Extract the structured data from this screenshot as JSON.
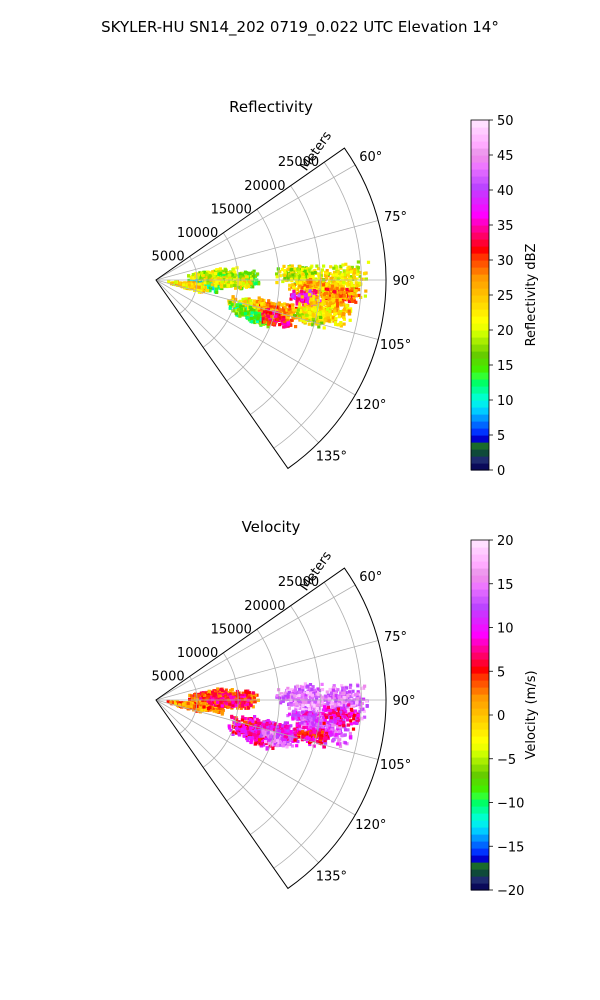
{
  "figure": {
    "title": "SKYLER-HU  SN14_202  0719_0.022 UTC Elevation 14°"
  },
  "chart_data": [
    {
      "type": "heatmap",
      "subtype": "radar-ppi-sector",
      "title": "Reflectivity",
      "radial_label": "Meters",
      "radial_ticks": [
        "5000",
        "10000",
        "15000",
        "20000",
        "25000"
      ],
      "radial_tick_values": [
        5000,
        10000,
        15000,
        20000,
        25000
      ],
      "azimuth_ticks": [
        "60°",
        "75°",
        "90°",
        "105°",
        "120°",
        "135°"
      ],
      "azimuth_tick_values": [
        60,
        75,
        90,
        105,
        120,
        135
      ],
      "azimuth_range": [
        55,
        145
      ],
      "range_max": 28000,
      "grid": true,
      "colorbar": {
        "label": "Reflectivity dBZ",
        "ticks": [
          "0",
          "5",
          "10",
          "15",
          "20",
          "25",
          "30",
          "35",
          "40",
          "45",
          "50"
        ],
        "range": [
          0,
          50
        ],
        "colors": [
          "#0a0a5a",
          "#1e2a6e",
          "#0f4a3a",
          "#1a6a2a",
          "#0000cc",
          "#0033ff",
          "#0066ff",
          "#0099ff",
          "#00ccff",
          "#00eeee",
          "#00ffcc",
          "#00ff99",
          "#00ff66",
          "#33ff33",
          "#44ee00",
          "#55dd00",
          "#66cc00",
          "#88dd00",
          "#aaee00",
          "#ccff00",
          "#eeff00",
          "#ffff00",
          "#ffee00",
          "#ffdd00",
          "#ffcc00",
          "#ffbb00",
          "#ffaa00",
          "#ff9900",
          "#ff7700",
          "#ff5500",
          "#ff3300",
          "#ff0000",
          "#ff0033",
          "#ff0066",
          "#ff0099",
          "#ff00cc",
          "#ff00ff",
          "#ee11ff",
          "#dd22ff",
          "#cc33ff",
          "#bb44ff",
          "#cc55ff",
          "#dd66ff",
          "#ee77ff",
          "#ee88ee",
          "#ee99ee",
          "#ffaaff",
          "#ffbbff",
          "#ffccff",
          "#ffe0ff"
        ]
      },
      "echoes": [
        {
          "az": 96,
          "r": 6000,
          "rw": 2800,
          "aw": 7,
          "v": 12
        },
        {
          "az": 100,
          "r": 4000,
          "rw": 2800,
          "aw": 7,
          "v": 24
        },
        {
          "az": 85,
          "r": 7000,
          "rw": 3500,
          "aw": 6,
          "v": 20
        },
        {
          "az": 90,
          "r": 10000,
          "rw": 3000,
          "aw": 7,
          "v": 16
        },
        {
          "az": 92,
          "r": 9000,
          "rw": 3500,
          "aw": 5,
          "v": 21
        },
        {
          "az": 106,
          "r": 13000,
          "rw": 4500,
          "aw": 6,
          "v": 23
        },
        {
          "az": 110,
          "r": 12500,
          "rw": 3500,
          "aw": 5,
          "v": 15
        },
        {
          "az": 104,
          "r": 15500,
          "rw": 4000,
          "aw": 5,
          "v": 27
        },
        {
          "az": 108,
          "r": 15500,
          "rw": 2500,
          "aw": 4,
          "v": 32
        },
        {
          "az": 88,
          "r": 17500,
          "rw": 3500,
          "aw": 5,
          "v": 20
        },
        {
          "az": 93,
          "r": 19500,
          "rw": 4000,
          "aw": 6,
          "v": 25
        },
        {
          "az": 97,
          "r": 18500,
          "rw": 2500,
          "aw": 4,
          "v": 37
        },
        {
          "az": 100,
          "r": 21000,
          "rw": 4000,
          "aw": 6,
          "v": 24
        },
        {
          "az": 90,
          "r": 23000,
          "rw": 3500,
          "aw": 6,
          "v": 22
        },
        {
          "az": 95,
          "r": 22500,
          "rw": 3000,
          "aw": 4,
          "v": 28
        },
        {
          "az": 103,
          "r": 19500,
          "rw": 2500,
          "aw": 4,
          "v": 21
        }
      ]
    },
    {
      "type": "heatmap",
      "subtype": "radar-ppi-sector",
      "title": "Velocity",
      "radial_label": "Meters",
      "radial_ticks": [
        "5000",
        "10000",
        "15000",
        "20000",
        "25000"
      ],
      "radial_tick_values": [
        5000,
        10000,
        15000,
        20000,
        25000
      ],
      "azimuth_ticks": [
        "60°",
        "75°",
        "90°",
        "105°",
        "120°",
        "135°"
      ],
      "azimuth_tick_values": [
        60,
        75,
        90,
        105,
        120,
        135
      ],
      "azimuth_range": [
        55,
        145
      ],
      "range_max": 28000,
      "grid": true,
      "colorbar": {
        "label": "Velocity (m/s)",
        "ticks": [
          "−20",
          "−15",
          "−10",
          "−5",
          "0",
          "5",
          "10",
          "15",
          "20"
        ],
        "range": [
          -20,
          20
        ],
        "colors": [
          "#0a0a5a",
          "#1e2a6e",
          "#0f4a3a",
          "#1a6a2a",
          "#0000cc",
          "#0033ff",
          "#0066ff",
          "#0099ff",
          "#00ccff",
          "#00eeee",
          "#00ffcc",
          "#00ff99",
          "#00ff66",
          "#33ff33",
          "#44ee00",
          "#55dd00",
          "#66cc00",
          "#88dd00",
          "#aaee00",
          "#ccff00",
          "#eeff00",
          "#ffff00",
          "#ffee00",
          "#ffdd00",
          "#ffcc00",
          "#ffbb00",
          "#ffaa00",
          "#ff9900",
          "#ff7700",
          "#ff5500",
          "#ff3300",
          "#ff0000",
          "#ff0033",
          "#ff0066",
          "#ff0099",
          "#ff00cc",
          "#ff00ff",
          "#ee11ff",
          "#dd22ff",
          "#cc33ff",
          "#bb44ff",
          "#cc55ff",
          "#dd66ff",
          "#ee77ff",
          "#ee88ee",
          "#ee99ee",
          "#ffaaff",
          "#ffbbff",
          "#ffccff",
          "#ffe0ff"
        ]
      },
      "echoes": [
        {
          "az": 96,
          "r": 6000,
          "rw": 2800,
          "aw": 7,
          "v": 2
        },
        {
          "az": 100,
          "r": 4000,
          "rw": 2800,
          "aw": 7,
          "v": 2
        },
        {
          "az": 85,
          "r": 7000,
          "rw": 3500,
          "aw": 6,
          "v": 4
        },
        {
          "az": 90,
          "r": 10000,
          "rw": 3000,
          "aw": 7,
          "v": 4
        },
        {
          "az": 92,
          "r": 9000,
          "rw": 3500,
          "aw": 5,
          "v": 6
        },
        {
          "az": 106,
          "r": 13000,
          "rw": 4500,
          "aw": 6,
          "v": 7
        },
        {
          "az": 110,
          "r": 12500,
          "rw": 3500,
          "aw": 5,
          "v": 8
        },
        {
          "az": 104,
          "r": 15500,
          "rw": 4000,
          "aw": 5,
          "v": 10
        },
        {
          "az": 108,
          "r": 15500,
          "rw": 2500,
          "aw": 4,
          "v": 14
        },
        {
          "az": 88,
          "r": 17500,
          "rw": 3500,
          "aw": 5,
          "v": 15
        },
        {
          "az": 93,
          "r": 19500,
          "rw": 4000,
          "aw": 6,
          "v": 16
        },
        {
          "az": 97,
          "r": 18500,
          "rw": 2500,
          "aw": 4,
          "v": 11
        },
        {
          "az": 100,
          "r": 21000,
          "rw": 4000,
          "aw": 6,
          "v": 13
        },
        {
          "az": 90,
          "r": 23000,
          "rw": 3500,
          "aw": 6,
          "v": 15
        },
        {
          "az": 95,
          "r": 22500,
          "rw": 3000,
          "aw": 4,
          "v": 9
        },
        {
          "az": 103,
          "r": 19500,
          "rw": 2500,
          "aw": 4,
          "v": 7
        }
      ]
    }
  ]
}
